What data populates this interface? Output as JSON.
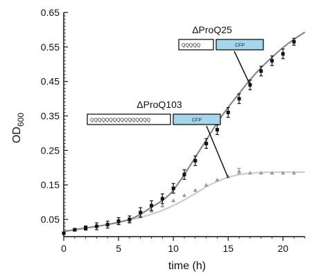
{
  "chart_data": {
    "type": "scatter",
    "xlabel": "time (h)",
    "ylabel_main": "OD",
    "ylabel_sub": "600",
    "xlim": [
      0,
      22
    ],
    "ylim": [
      0,
      0.65
    ],
    "xticks": [
      0,
      5,
      10,
      15,
      20
    ],
    "yticks": [
      0.05,
      0.15,
      0.25,
      0.35,
      0.45,
      0.55,
      0.65
    ],
    "series": [
      {
        "name": "ΔProQ25",
        "color": "#111111",
        "marker": "square",
        "x": [
          0,
          1,
          2,
          3,
          4,
          5,
          6,
          7,
          8,
          9,
          10,
          11,
          12,
          13,
          14,
          15,
          16,
          17,
          18,
          19,
          20,
          21
        ],
        "y": [
          0.01,
          0.02,
          0.025,
          0.03,
          0.035,
          0.045,
          0.05,
          0.07,
          0.09,
          0.11,
          0.14,
          0.18,
          0.22,
          0.27,
          0.31,
          0.36,
          0.4,
          0.44,
          0.48,
          0.51,
          0.53,
          0.565
        ],
        "err": [
          0.003,
          0.004,
          0.006,
          0.01,
          0.01,
          0.01,
          0.01,
          0.014,
          0.014,
          0.014,
          0.014,
          0.014,
          0.014,
          0.014,
          0.014,
          0.014,
          0.014,
          0.014,
          0.014,
          0.014,
          0.014,
          0.01
        ]
      },
      {
        "name": "ΔProQ103",
        "color": "#999999",
        "marker": "triangle",
        "x": [
          0,
          1,
          2,
          3,
          4,
          5,
          6,
          7,
          8,
          9,
          10,
          11,
          12,
          13,
          14,
          15,
          16,
          17,
          18,
          19,
          20,
          21
        ],
        "y": [
          0.01,
          0.02,
          0.025,
          0.03,
          0.035,
          0.04,
          0.045,
          0.06,
          0.075,
          0.09,
          0.105,
          0.12,
          0.135,
          0.15,
          0.165,
          0.175,
          0.19,
          0.185,
          0.185,
          0.185,
          0.185,
          0.185
        ],
        "err": [
          0,
          0,
          0,
          0,
          0,
          0,
          0,
          0,
          0,
          0,
          0,
          0,
          0,
          0,
          0,
          0,
          0.008,
          0,
          0,
          0,
          0,
          0
        ]
      }
    ],
    "fits": [
      {
        "series": "ΔProQ25",
        "color": "#888888",
        "x": [
          0,
          2,
          4,
          6,
          7,
          8,
          9,
          9.5,
          10,
          11,
          12,
          13,
          14,
          15,
          16,
          17,
          18,
          19,
          20,
          21,
          22
        ],
        "y": [
          0.015,
          0.025,
          0.035,
          0.05,
          0.065,
          0.085,
          0.105,
          0.118,
          0.135,
          0.18,
          0.23,
          0.28,
          0.33,
          0.375,
          0.415,
          0.455,
          0.49,
          0.52,
          0.548,
          0.572,
          0.593
        ]
      },
      {
        "series": "ΔProQ103",
        "color": "#cccccc",
        "x": [
          0,
          2,
          4,
          6,
          8,
          10,
          12,
          13,
          14,
          15,
          16,
          17,
          18,
          20,
          22
        ],
        "y": [
          0.015,
          0.025,
          0.035,
          0.048,
          0.065,
          0.09,
          0.125,
          0.145,
          0.16,
          0.172,
          0.18,
          0.184,
          0.186,
          0.187,
          0.187
        ]
      }
    ],
    "annotations": [
      {
        "title": "ΔProQ25",
        "repeat_text": "QQQQQ",
        "tag": "CFP",
        "pointer_to": {
          "x": 17,
          "y": 0.44
        }
      },
      {
        "title": "ΔProQ103",
        "repeat_text": "QQQQQQQQQQQQQQQQ",
        "tag": "CFP",
        "pointer_to": {
          "x": 15,
          "y": 0.17
        }
      }
    ],
    "colors": {
      "cfp_box": "#a6d6ec",
      "axis": "#111111"
    }
  }
}
